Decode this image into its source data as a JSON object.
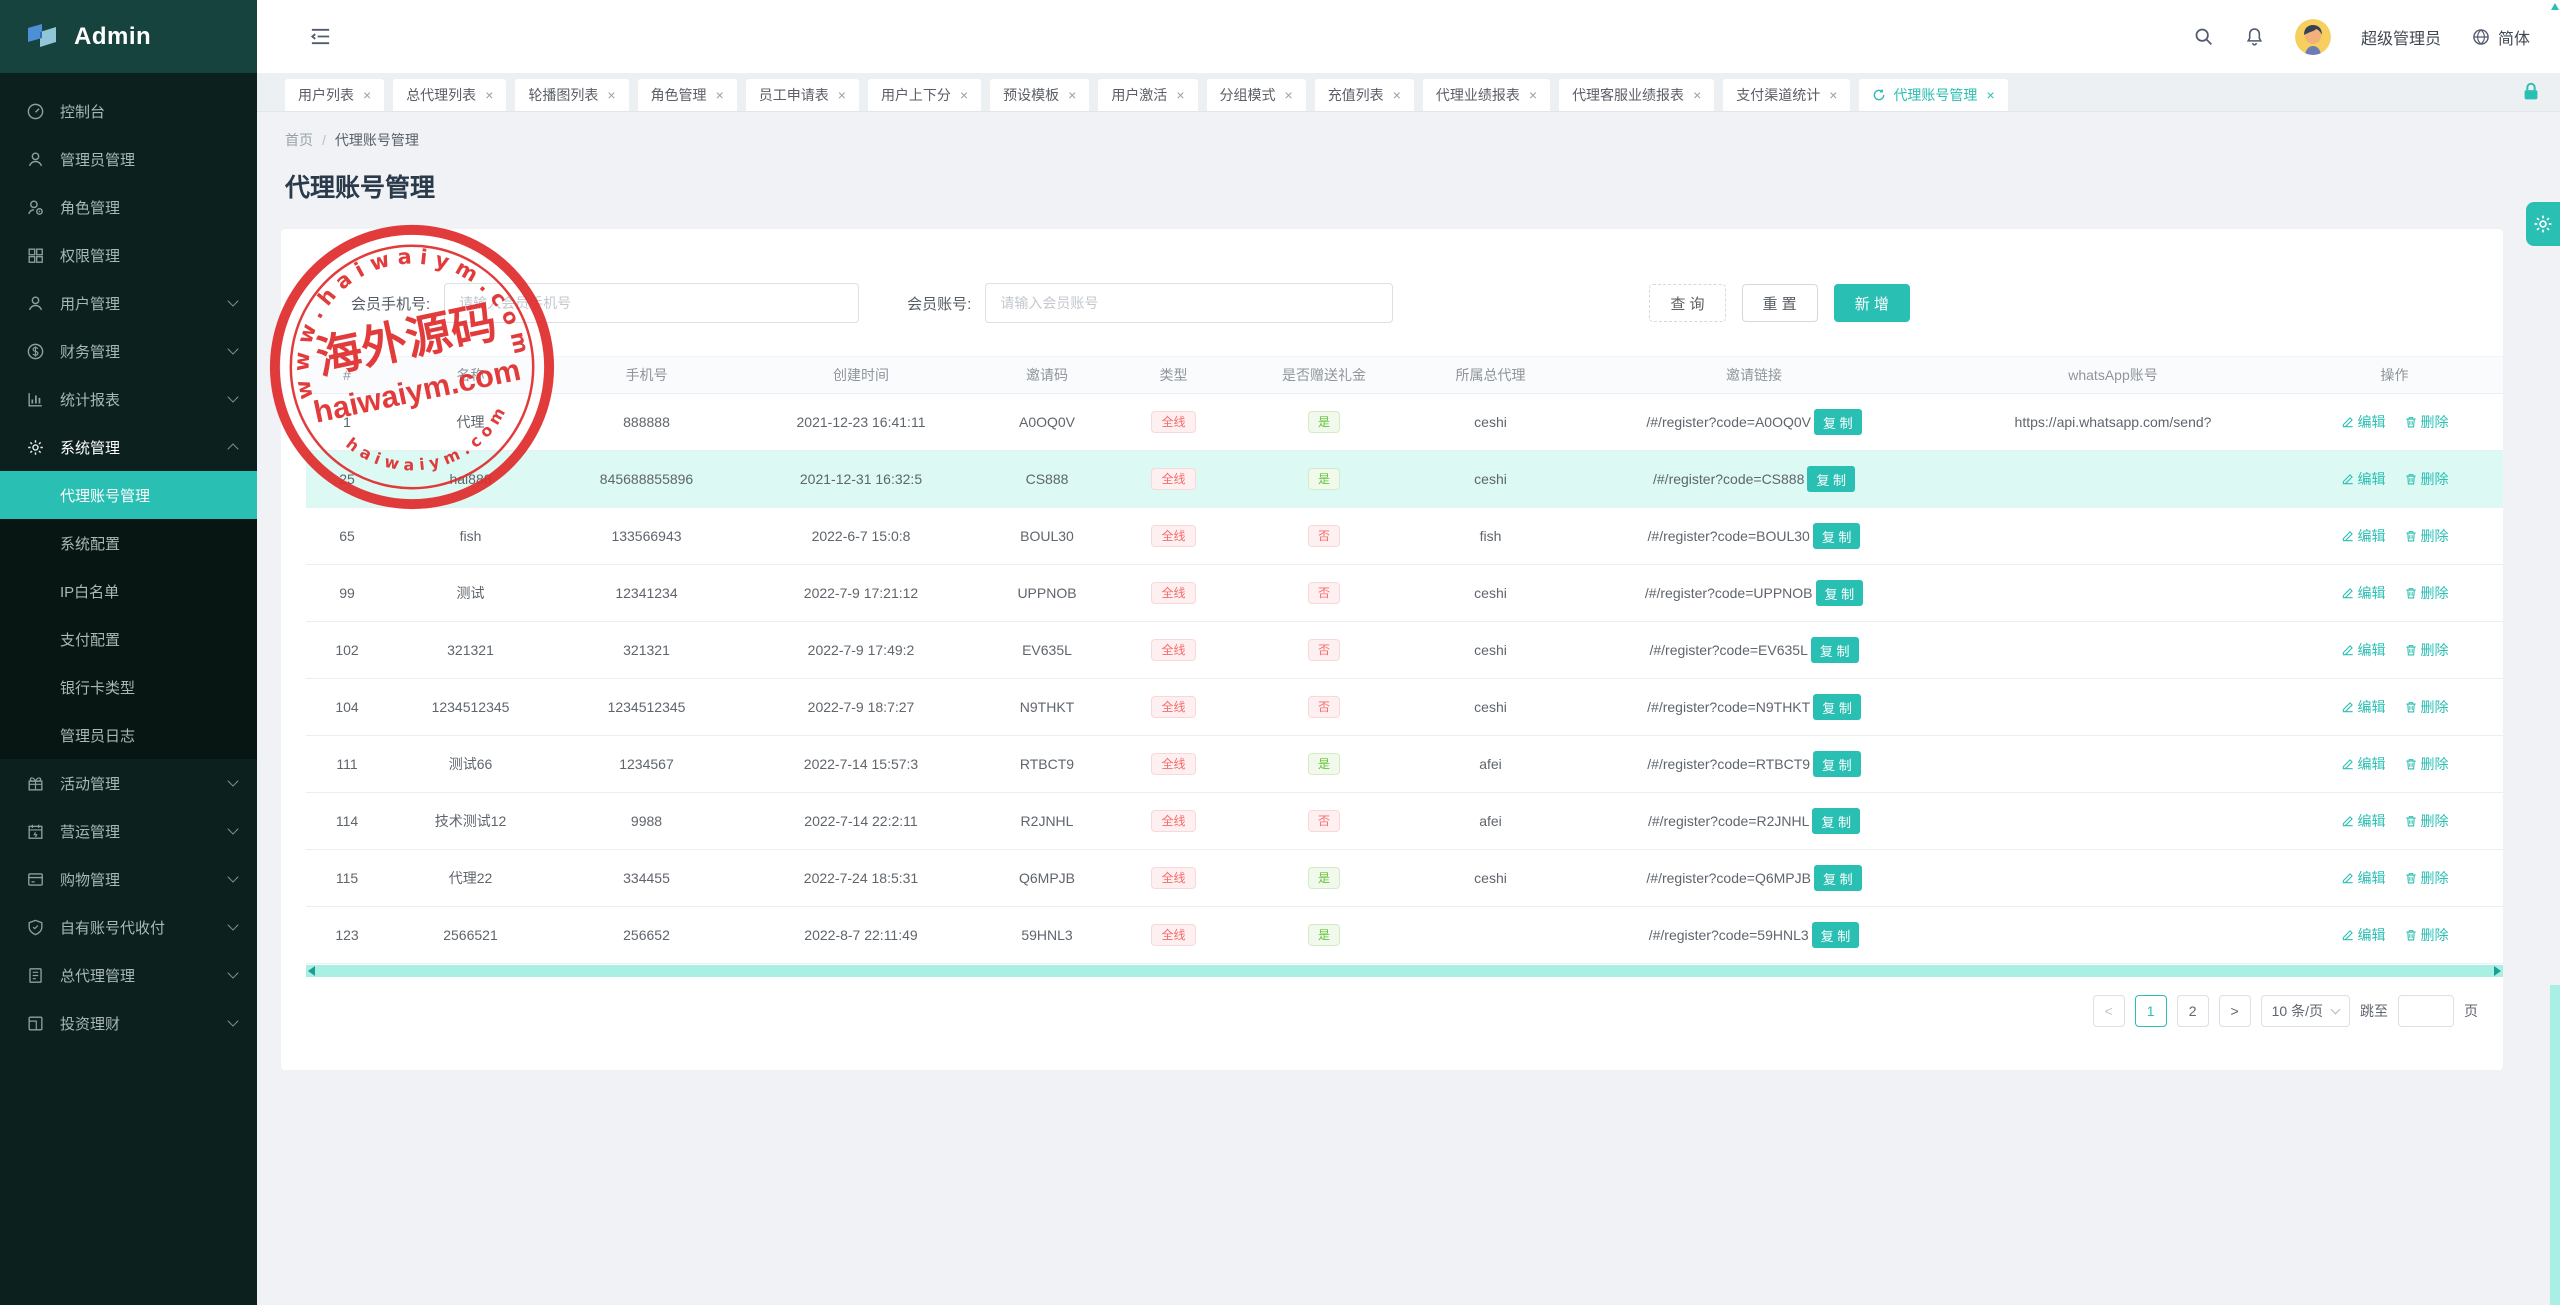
{
  "app": {
    "name": "Admin",
    "logo_icon": "admin-logo"
  },
  "colors": {
    "accent": "#2abfb3",
    "sidebar_bg": "#0c211e",
    "sidebar_header_bg": "#16433d",
    "submenu_bg": "#081613",
    "danger": "#f56c6c",
    "success": "#67c23a",
    "scrollbar": "#a9efe4",
    "stamp_red": "#e02b2b",
    "content_bg": "#f0f2f5"
  },
  "topbar": {
    "burger_icon": "collapse-menu-icon",
    "search_icon": "search-icon",
    "bell_icon": "bell-icon",
    "avatar_icon": "user-avatar",
    "user_role": "超级管理员",
    "globe_icon": "globe-icon",
    "language": "简体"
  },
  "sidebar": {
    "items": [
      {
        "label": "控制台",
        "icon": "dashboard-icon",
        "arrow": false
      },
      {
        "label": "管理员管理",
        "icon": "admin-user-icon",
        "arrow": false
      },
      {
        "label": "角色管理",
        "icon": "role-icon",
        "arrow": false
      },
      {
        "label": "权限管理",
        "icon": "permission-icon",
        "arrow": false
      },
      {
        "label": "用户管理",
        "icon": "user-icon",
        "arrow": true
      },
      {
        "label": "财务管理",
        "icon": "finance-icon",
        "arrow": true
      },
      {
        "label": "统计报表",
        "icon": "chart-icon",
        "arrow": true
      },
      {
        "label": "系统管理",
        "icon": "gear-icon",
        "arrow": true,
        "expanded": true,
        "children": [
          {
            "label": "代理账号管理",
            "active": true
          },
          {
            "label": "系统配置"
          },
          {
            "label": "IP白名单"
          },
          {
            "label": "支付配置"
          },
          {
            "label": "银行卡类型"
          },
          {
            "label": "管理员日志"
          }
        ]
      },
      {
        "label": "活动管理",
        "icon": "gift-icon",
        "arrow": true
      },
      {
        "label": "营运管理",
        "icon": "calendar-icon",
        "arrow": true
      },
      {
        "label": "购物管理",
        "icon": "shopping-icon",
        "arrow": true
      },
      {
        "label": "自有账号代收付",
        "icon": "shield-icon",
        "arrow": true
      },
      {
        "label": "总代理管理",
        "icon": "document-icon",
        "arrow": true
      },
      {
        "label": "投资理财",
        "icon": "invest-icon",
        "arrow": true
      }
    ]
  },
  "tabs": {
    "items": [
      {
        "label": "用户列表"
      },
      {
        "label": "总代理列表"
      },
      {
        "label": "轮播图列表"
      },
      {
        "label": "角色管理"
      },
      {
        "label": "员工申请表"
      },
      {
        "label": "用户上下分"
      },
      {
        "label": "预设模板"
      },
      {
        "label": "用户激活"
      },
      {
        "label": "分组模式"
      },
      {
        "label": "充值列表"
      },
      {
        "label": "代理业绩报表"
      },
      {
        "label": "代理客服业绩报表"
      },
      {
        "label": "支付渠道统计"
      },
      {
        "label": "代理账号管理",
        "active": true
      }
    ],
    "close_glyph": "×",
    "lock_icon": "lock-icon"
  },
  "breadcrumb": {
    "home": "首页",
    "separator": "/",
    "current": "代理账号管理"
  },
  "page": {
    "title": "代理账号管理"
  },
  "filter": {
    "phone_label": "会员手机号:",
    "phone_placeholder": "请输入会员手机号",
    "account_label": "会员账号:",
    "account_placeholder": "请输入会员账号",
    "search_label": "查 询",
    "reset_label": "重 置",
    "add_label": "新 增"
  },
  "table": {
    "columns": [
      "#",
      "名称",
      "手机号",
      "创建时间",
      "邀请码",
      "类型",
      "是否赠送礼金",
      "所属总代理",
      "邀请链接",
      "whatsApp账号",
      "操作"
    ],
    "copy_label": "复 制",
    "edit_label": "编辑",
    "delete_label": "删除",
    "type_badge_color": "red",
    "rows": [
      {
        "id": "1",
        "name": "代理",
        "phone": "888888",
        "created": "2021-12-23 16:41:11",
        "code": "A0OQ0V",
        "type": "全线",
        "gift": "是",
        "parent": "ceshi",
        "link": "/#/register?code=A0OQ0V",
        "whatsapp": "https://api.whatsapp.com/send?",
        "highlighted": false
      },
      {
        "id": "25",
        "name": "hai888",
        "phone": "845688855896",
        "created": "2021-12-31 16:32:5",
        "code": "CS888",
        "type": "全线",
        "gift": "是",
        "parent": "ceshi",
        "link": "/#/register?code=CS888",
        "whatsapp": "",
        "highlighted": true
      },
      {
        "id": "65",
        "name": "fish",
        "phone": "133566943",
        "created": "2022-6-7 15:0:8",
        "code": "BOUL30",
        "type": "全线",
        "gift": "否",
        "parent": "fish",
        "link": "/#/register?code=BOUL30",
        "whatsapp": "",
        "highlighted": false
      },
      {
        "id": "99",
        "name": "测试",
        "phone": "12341234",
        "created": "2022-7-9 17:21:12",
        "code": "UPPNOB",
        "type": "全线",
        "gift": "否",
        "parent": "ceshi",
        "link": "/#/register?code=UPPNOB",
        "whatsapp": "",
        "highlighted": false
      },
      {
        "id": "102",
        "name": "321321",
        "phone": "321321",
        "created": "2022-7-9 17:49:2",
        "code": "EV635L",
        "type": "全线",
        "gift": "否",
        "parent": "ceshi",
        "link": "/#/register?code=EV635L",
        "whatsapp": "",
        "highlighted": false
      },
      {
        "id": "104",
        "name": "1234512345",
        "phone": "1234512345",
        "created": "2022-7-9 18:7:27",
        "code": "N9THKT",
        "type": "全线",
        "gift": "否",
        "parent": "ceshi",
        "link": "/#/register?code=N9THKT",
        "whatsapp": "",
        "highlighted": false
      },
      {
        "id": "111",
        "name": "测试66",
        "phone": "1234567",
        "created": "2022-7-14 15:57:3",
        "code": "RTBCT9",
        "type": "全线",
        "gift": "是",
        "parent": "afei",
        "link": "/#/register?code=RTBCT9",
        "whatsapp": "",
        "highlighted": false
      },
      {
        "id": "114",
        "name": "技术测试12",
        "phone": "9988",
        "created": "2022-7-14 22:2:11",
        "code": "R2JNHL",
        "type": "全线",
        "gift": "否",
        "parent": "afei",
        "link": "/#/register?code=R2JNHL",
        "whatsapp": "",
        "highlighted": false
      },
      {
        "id": "115",
        "name": "代理22",
        "phone": "334455",
        "created": "2022-7-24 18:5:31",
        "code": "Q6MPJB",
        "type": "全线",
        "gift": "是",
        "parent": "ceshi",
        "link": "/#/register?code=Q6MPJB",
        "whatsapp": "",
        "highlighted": false
      },
      {
        "id": "123",
        "name": "2566521",
        "phone": "256652",
        "created": "2022-8-7 22:11:49",
        "code": "59HNL3",
        "type": "全线",
        "gift": "是",
        "parent": "",
        "link": "/#/register?code=59HNL3",
        "whatsapp": "",
        "highlighted": false
      }
    ]
  },
  "pagination": {
    "prev_glyph": "<",
    "pages": [
      "1",
      "2"
    ],
    "active_page": "1",
    "next_glyph": ">",
    "page_size": "10 条/页",
    "jump_label": "跳至",
    "jump_value": "",
    "jump_suffix": "页"
  },
  "watermark": {
    "arc_top": "w w w . h a i w a i y m . c o m",
    "center_cn": "海外源码",
    "center_en": "haiwaiym.com",
    "arc_bottom": "h a i w a i y m . c o m"
  }
}
